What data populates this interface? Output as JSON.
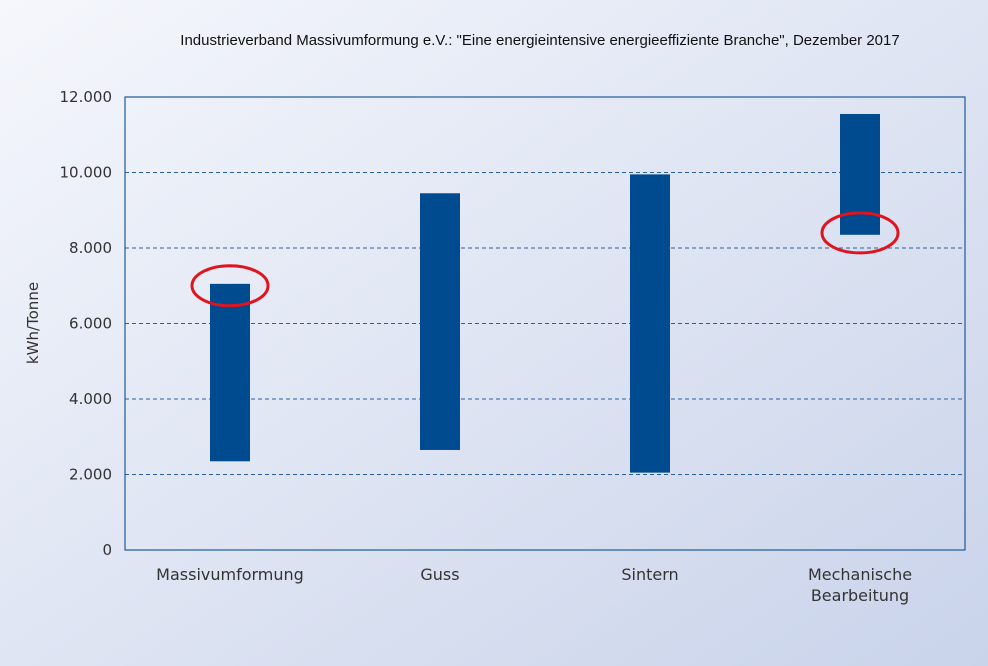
{
  "chart_data": {
    "type": "bar",
    "subtype": "floating-range",
    "title": "",
    "source": "Industrieverband Massivumformung e.V.: \"Eine energieintensive energieeffiziente Branche\", Dezember 2017",
    "xlabel": "",
    "ylabel": "kWh/Tonne",
    "ylim": [
      0,
      12000
    ],
    "yticks": [
      0,
      2000,
      4000,
      6000,
      8000,
      10000,
      12000
    ],
    "ytick_labels": [
      "0",
      "2.000",
      "4.000",
      "6.000",
      "8.000",
      "10.000",
      "12.000"
    ],
    "grid": true,
    "categories": [
      {
        "label_lines": [
          "Massivumformung"
        ]
      },
      {
        "label_lines": [
          "Guss"
        ]
      },
      {
        "label_lines": [
          "Sintern"
        ]
      },
      {
        "label_lines": [
          "Mechanische",
          "Bearbeitung"
        ]
      }
    ],
    "ranges": [
      {
        "low": 2350,
        "high": 7050
      },
      {
        "low": 2650,
        "high": 9450
      },
      {
        "low": 2050,
        "high": 9950
      },
      {
        "low": 8350,
        "high": 11550
      }
    ],
    "annotations": [
      {
        "type": "ellipse-highlight",
        "category_index": 0,
        "value": 7000,
        "color": "#e0141e"
      },
      {
        "type": "ellipse-highlight",
        "category_index": 3,
        "value": 8400,
        "color": "#e0141e"
      }
    ],
    "colors": {
      "bar": "#004a8f",
      "axis": "#1f5a99",
      "grid": "#2a5fa0",
      "annotation": "#e0141e",
      "background_start": "#f5f7fc",
      "background_end": "#c9d3ea"
    }
  }
}
